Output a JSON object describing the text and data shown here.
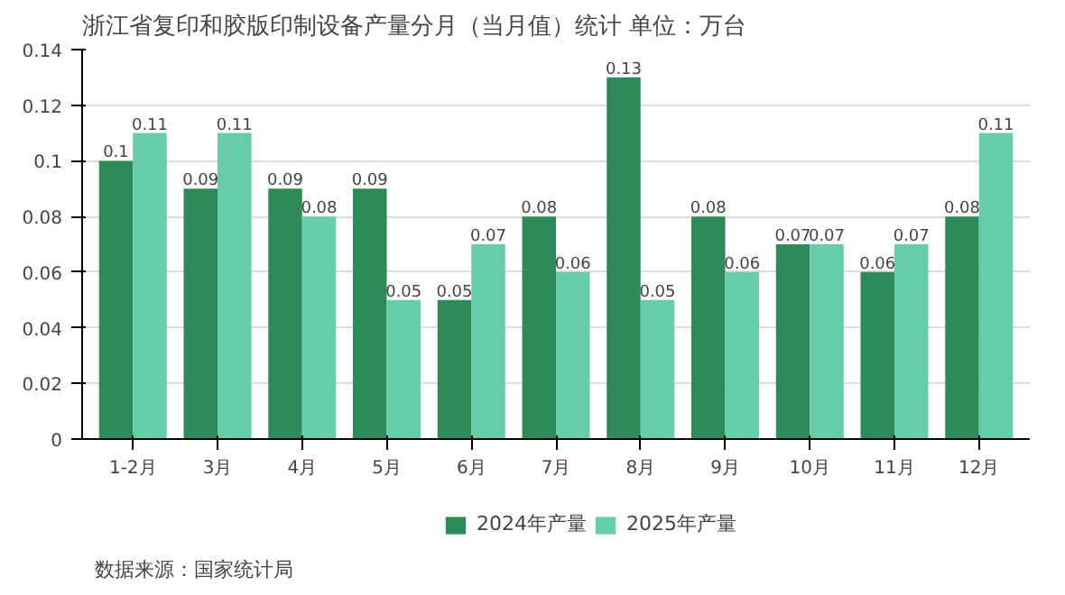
{
  "chart_data": {
    "type": "bar",
    "title": "浙江省复印和胶版印制设备产量分月（当月值）统计  单位：万台",
    "categories": [
      "1-2月",
      "3月",
      "4月",
      "5月",
      "6月",
      "7月",
      "8月",
      "9月",
      "10月",
      "11月",
      "12月"
    ],
    "series": [
      {
        "name": "2024年产量",
        "color": "#2e8b57",
        "values": [
          0.1,
          0.09,
          0.09,
          0.09,
          0.05,
          0.08,
          0.13,
          0.08,
          0.07,
          0.06,
          0.08
        ]
      },
      {
        "name": "2025年产量",
        "color": "#66cdaa",
        "values": [
          0.11,
          0.11,
          0.08,
          0.05,
          0.07,
          0.06,
          0.05,
          0.06,
          0.07,
          0.07,
          0.11
        ]
      }
    ],
    "ylim": [
      0,
      0.14
    ],
    "yticks": [
      0,
      0.02,
      0.04,
      0.06,
      0.08,
      0.1,
      0.12,
      0.14
    ],
    "grid": "y",
    "legend": "bottom",
    "data_labels": true,
    "annotations": [
      "数据来源：国家统计局"
    ]
  }
}
